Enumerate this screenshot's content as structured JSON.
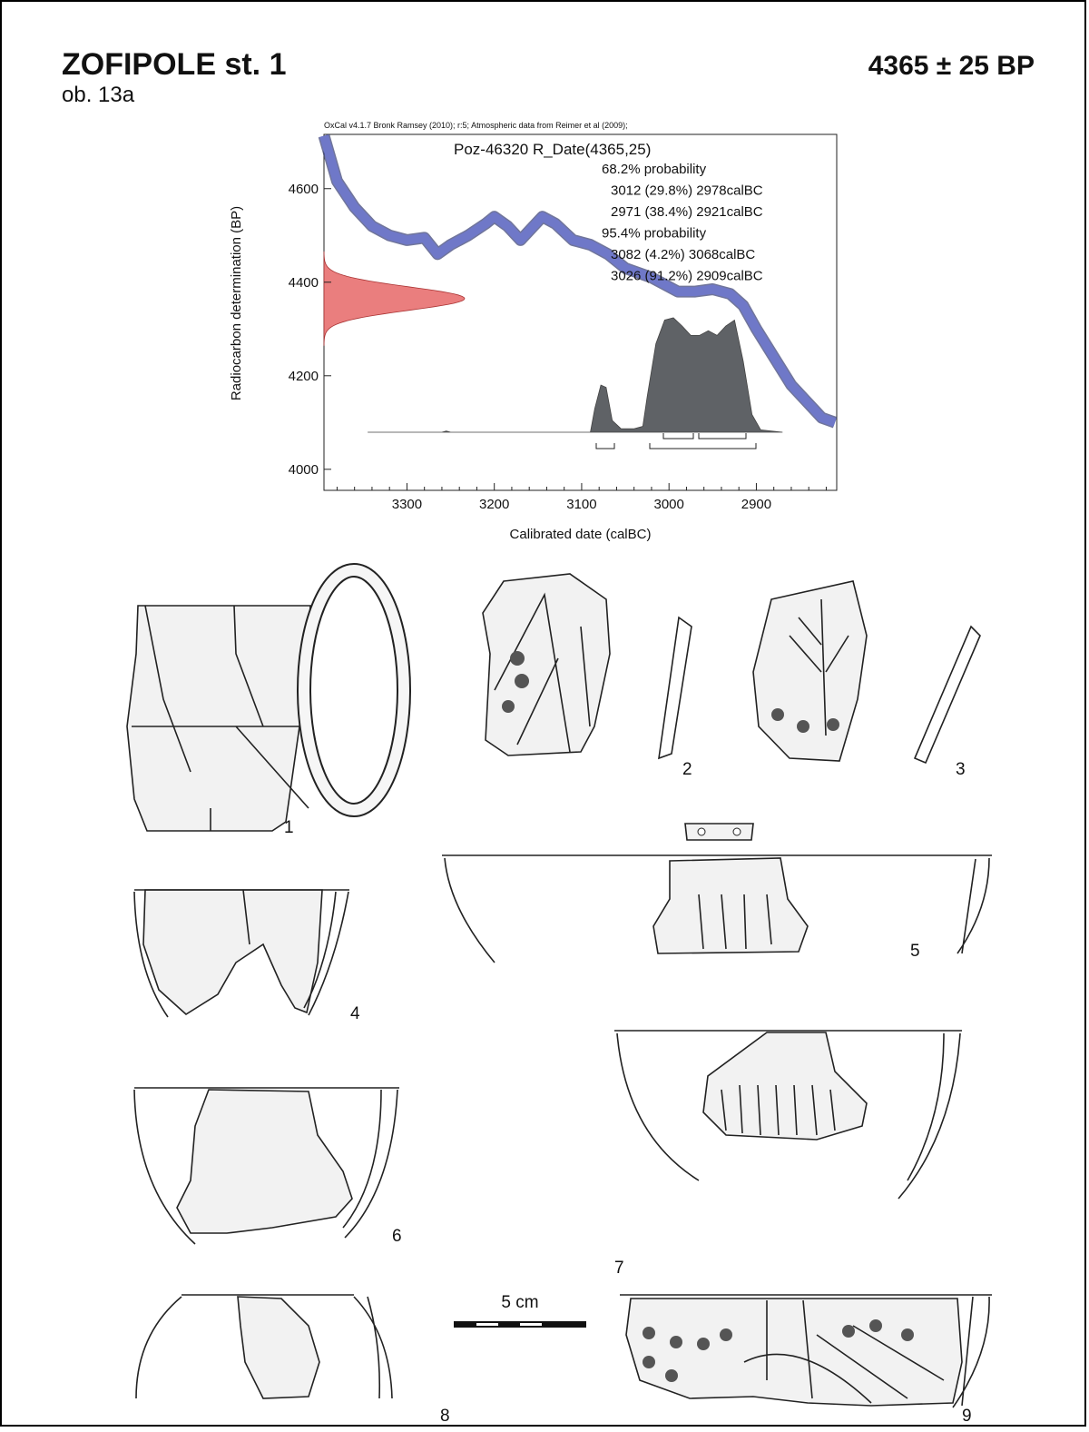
{
  "header": {
    "title": "ZOFIPOLE st. 1",
    "subtitle": "ob. 13a",
    "date": "4365 ± 25 BP"
  },
  "chart_data": {
    "type": "oxcal",
    "credit": "OxCal v4.1.7 Bronk Ramsey (2010); r:5; Atmospheric data from Reimer et al (2009);",
    "sample_label": "Poz-46320 R_Date(4365,25)",
    "probability_text": [
      "68.2% probability",
      "3012 (29.8%) 2978calBC",
      "2971 (38.4%) 2921calBC",
      "95.4% probability",
      "3082 (4.2%) 3068calBC",
      "3026 (91.2%) 2909calBC"
    ],
    "x_label": "Calibrated date (calBC)",
    "y_label": "Radiocarbon determination (BP)",
    "xlim": [
      3395,
      2808
    ],
    "ylim": [
      3955,
      4716
    ],
    "xticks": [
      3300,
      3200,
      3100,
      3000,
      2900
    ],
    "yticks": [
      4000,
      4200,
      4400,
      4600
    ],
    "measurement": {
      "mean": 4365,
      "sd": 25,
      "color": "#e87070"
    },
    "curve": {
      "color": "#6f78c8",
      "x": [
        3395,
        3380,
        3360,
        3340,
        3320,
        3300,
        3280,
        3265,
        3250,
        3230,
        3210,
        3200,
        3185,
        3170,
        3155,
        3145,
        3130,
        3110,
        3090,
        3070,
        3050,
        3035,
        3020,
        3010,
        2990,
        2970,
        2950,
        2930,
        2915,
        2900,
        2880,
        2860,
        2840,
        2825,
        2810
      ],
      "values": [
        4713,
        4616,
        4560,
        4520,
        4500,
        4490,
        4495,
        4460,
        4480,
        4500,
        4525,
        4540,
        4520,
        4490,
        4520,
        4540,
        4525,
        4490,
        4480,
        4460,
        4430,
        4420,
        4410,
        4400,
        4380,
        4380,
        4385,
        4375,
        4350,
        4300,
        4240,
        4180,
        4140,
        4110,
        4100
      ]
    },
    "posterior": {
      "color": "#5f6266",
      "x": [
        3345,
        3260,
        3255,
        3250,
        3090,
        3085,
        3078,
        3072,
        3065,
        3055,
        3040,
        3030,
        3025,
        3015,
        3005,
        2995,
        2985,
        2975,
        2965,
        2955,
        2945,
        2935,
        2925,
        2915,
        2905,
        2895,
        2870
      ],
      "values": [
        0,
        0,
        0.01,
        0,
        0,
        0.2,
        0.4,
        0.38,
        0.1,
        0.03,
        0.03,
        0.05,
        0.3,
        0.75,
        0.95,
        0.97,
        0.9,
        0.82,
        0.82,
        0.86,
        0.82,
        0.9,
        0.95,
        0.6,
        0.15,
        0.02,
        0
      ]
    }
  },
  "figures": [
    "1",
    "2",
    "3",
    "4",
    "5",
    "6",
    "7",
    "8",
    "9"
  ],
  "scale_bar": "5 cm"
}
